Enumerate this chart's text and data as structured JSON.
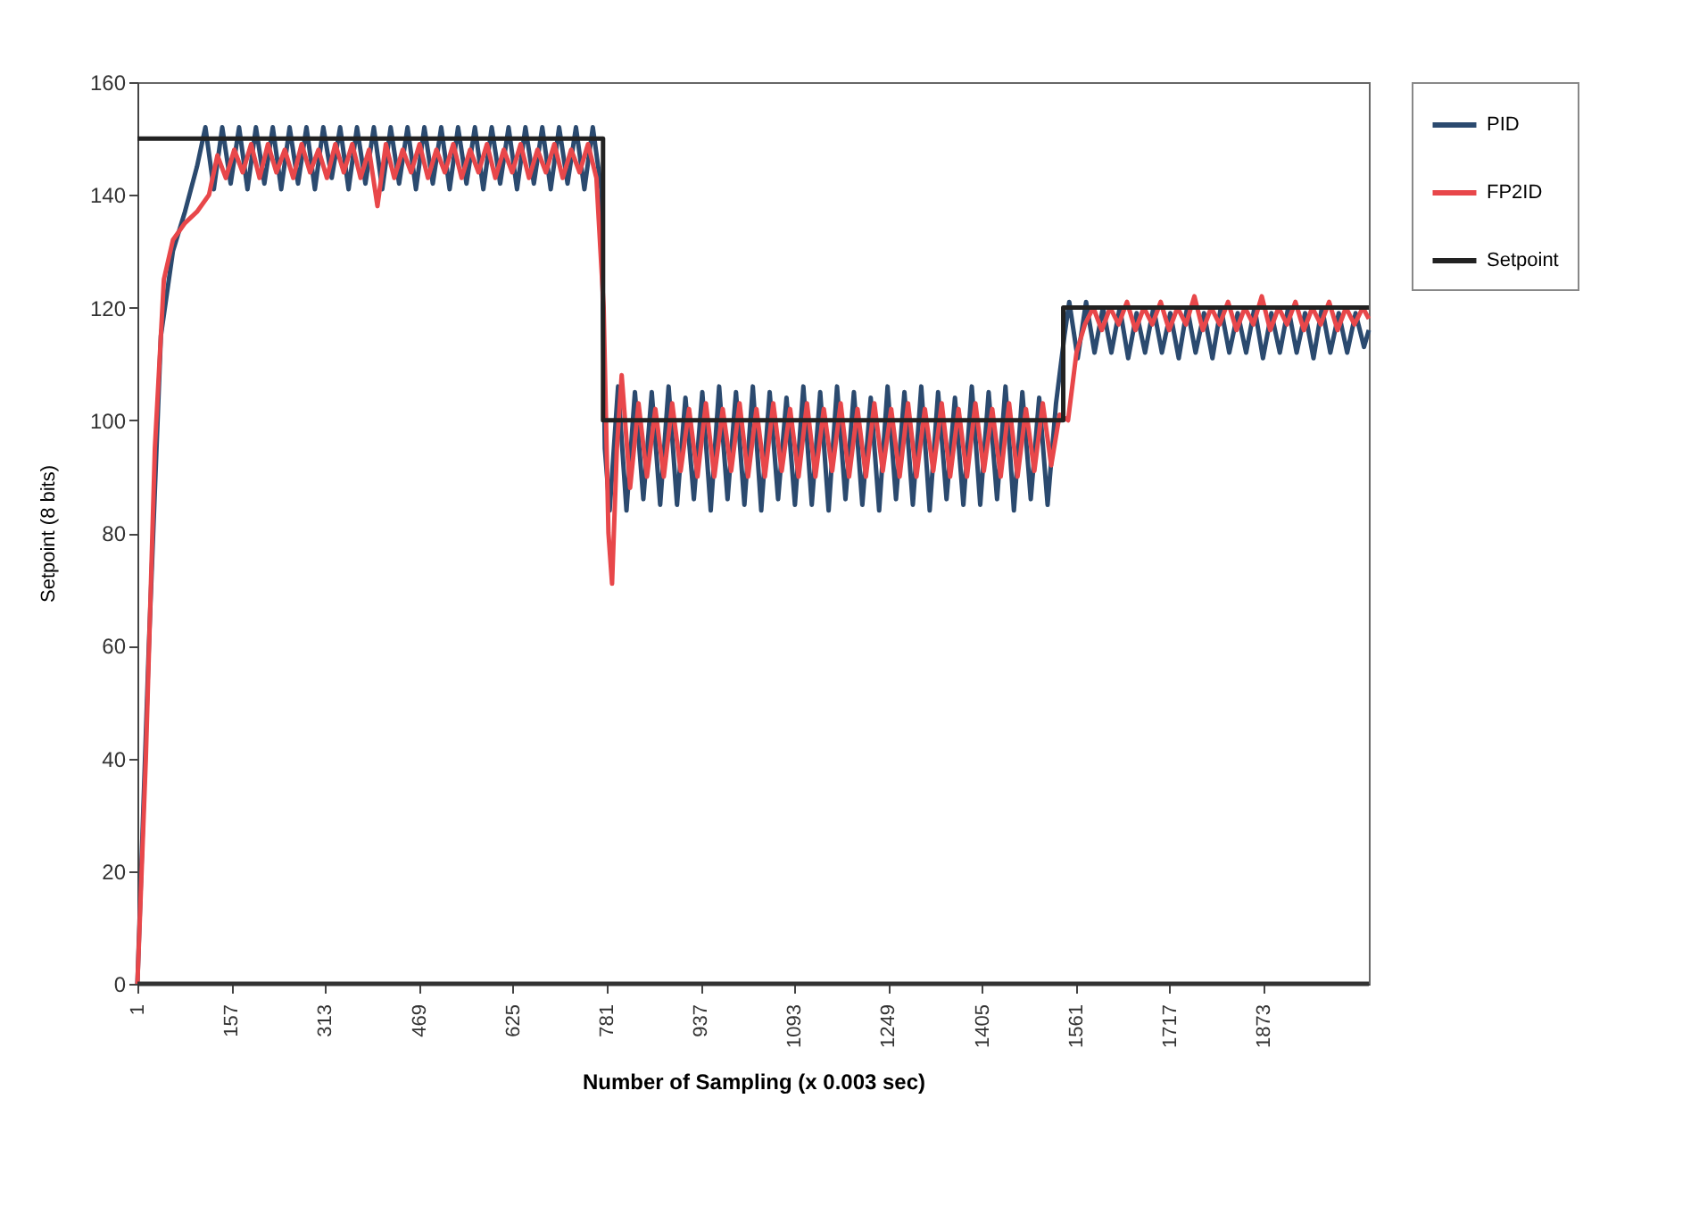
{
  "chart_data": {
    "type": "line",
    "xlabel": "Number of Sampling (x 0.003 sec)",
    "ylabel": "Setpoint (8 bits)",
    "xlim": [
      1,
      2048
    ],
    "xticks": [
      1,
      157,
      313,
      469,
      625,
      781,
      937,
      1093,
      1249,
      1405,
      1561,
      1717,
      1873
    ],
    "ylim": [
      0,
      160
    ],
    "yticks": [
      0,
      20,
      40,
      60,
      80,
      100,
      120,
      140,
      160
    ],
    "grid": false,
    "legend": "right",
    "marker": "none",
    "line_style": "solid",
    "series": [
      {
        "name": "PID",
        "color": "#2b4a6f",
        "x": [
          1,
          20,
          40,
          60,
          80,
          100,
          114,
          128,
          142,
          156,
          170,
          184,
          198,
          212,
          226,
          240,
          254,
          268,
          282,
          296,
          310,
          324,
          338,
          352,
          366,
          380,
          394,
          408,
          422,
          436,
          450,
          464,
          478,
          492,
          506,
          520,
          534,
          548,
          562,
          576,
          590,
          604,
          618,
          632,
          646,
          660,
          674,
          688,
          702,
          716,
          730,
          744,
          758,
          772,
          778,
          786,
          800,
          814,
          828,
          842,
          856,
          870,
          884,
          898,
          912,
          926,
          940,
          954,
          968,
          982,
          996,
          1010,
          1024,
          1038,
          1052,
          1066,
          1080,
          1094,
          1108,
          1122,
          1136,
          1150,
          1164,
          1178,
          1192,
          1206,
          1220,
          1234,
          1248,
          1262,
          1276,
          1290,
          1304,
          1318,
          1332,
          1346,
          1360,
          1374,
          1388,
          1402,
          1416,
          1430,
          1444,
          1458,
          1472,
          1486,
          1500,
          1514,
          1528,
          1542,
          1550,
          1564,
          1578,
          1592,
          1606,
          1620,
          1634,
          1648,
          1662,
          1676,
          1690,
          1704,
          1718,
          1732,
          1746,
          1760,
          1774,
          1788,
          1802,
          1816,
          1830,
          1844,
          1858,
          1872,
          1886,
          1900,
          1914,
          1928,
          1942,
          1956,
          1970,
          1984,
          1998,
          2012,
          2026,
          2040,
          2048
        ],
        "values": [
          0,
          60,
          115,
          130,
          137,
          145,
          152,
          141,
          152,
          142,
          152,
          141,
          152,
          142,
          152,
          141,
          152,
          142,
          152,
          141,
          152,
          143,
          152,
          141,
          152,
          142,
          152,
          141,
          152,
          142,
          152,
          141,
          152,
          142,
          152,
          141,
          152,
          142,
          152,
          141,
          152,
          142,
          152,
          141,
          152,
          142,
          152,
          141,
          152,
          142,
          152,
          141,
          152,
          141,
          95,
          84,
          106,
          84,
          105,
          86,
          105,
          85,
          106,
          85,
          104,
          86,
          105,
          84,
          106,
          86,
          105,
          85,
          106,
          84,
          105,
          86,
          104,
          85,
          106,
          85,
          105,
          84,
          106,
          86,
          105,
          85,
          104,
          84,
          106,
          86,
          105,
          85,
          106,
          84,
          105,
          86,
          104,
          85,
          106,
          85,
          105,
          86,
          106,
          84,
          105,
          86,
          104,
          85,
          103,
          115,
          121,
          111,
          121,
          112,
          120,
          112,
          120,
          111,
          119,
          112,
          120,
          112,
          119,
          111,
          120,
          112,
          119,
          111,
          120,
          112,
          119,
          112,
          120,
          111,
          119,
          112,
          120,
          112,
          119,
          111,
          120,
          112,
          119,
          112,
          119,
          113,
          116
        ]
      },
      {
        "name": "FP2ID",
        "color": "#e8474a",
        "x": [
          1,
          15,
          30,
          45,
          60,
          80,
          100,
          120,
          134,
          148,
          162,
          176,
          190,
          204,
          218,
          232,
          246,
          260,
          274,
          288,
          302,
          316,
          330,
          344,
          358,
          372,
          386,
          400,
          414,
          428,
          442,
          456,
          470,
          484,
          498,
          512,
          526,
          540,
          554,
          568,
          582,
          596,
          610,
          624,
          638,
          652,
          666,
          680,
          694,
          708,
          722,
          736,
          750,
          764,
          776,
          784,
          790,
          798,
          806,
          820,
          834,
          848,
          862,
          876,
          890,
          904,
          918,
          932,
          946,
          960,
          974,
          988,
          1002,
          1016,
          1030,
          1044,
          1058,
          1072,
          1086,
          1100,
          1114,
          1128,
          1142,
          1156,
          1170,
          1184,
          1198,
          1212,
          1226,
          1240,
          1254,
          1268,
          1282,
          1296,
          1310,
          1324,
          1338,
          1352,
          1366,
          1380,
          1394,
          1408,
          1422,
          1436,
          1450,
          1464,
          1478,
          1492,
          1506,
          1520,
          1534,
          1548,
          1562,
          1576,
          1590,
          1604,
          1618,
          1632,
          1646,
          1660,
          1674,
          1688,
          1702,
          1716,
          1730,
          1744,
          1758,
          1772,
          1786,
          1800,
          1814,
          1828,
          1842,
          1856,
          1870,
          1884,
          1898,
          1912,
          1926,
          1940,
          1954,
          1968,
          1982,
          1996,
          2010,
          2024,
          2038,
          2048
        ],
        "values": [
          0,
          40,
          95,
          125,
          132,
          135,
          137,
          140,
          147,
          143,
          148,
          144,
          149,
          143,
          149,
          144,
          148,
          143,
          149,
          144,
          148,
          143,
          149,
          144,
          149,
          143,
          148,
          138,
          149,
          143,
          148,
          144,
          149,
          143,
          148,
          144,
          149,
          143,
          148,
          144,
          149,
          143,
          148,
          144,
          149,
          143,
          148,
          144,
          149,
          143,
          148,
          144,
          149,
          143,
          120,
          80,
          71,
          95,
          108,
          88,
          103,
          90,
          102,
          90,
          103,
          91,
          102,
          90,
          103,
          90,
          102,
          91,
          103,
          90,
          102,
          90,
          103,
          91,
          102,
          90,
          103,
          90,
          102,
          91,
          103,
          90,
          102,
          90,
          103,
          91,
          102,
          90,
          103,
          90,
          102,
          91,
          103,
          90,
          102,
          90,
          103,
          91,
          102,
          90,
          103,
          90,
          102,
          91,
          103,
          92,
          101,
          100,
          112,
          117,
          120,
          116,
          120,
          117,
          121,
          116,
          120,
          117,
          121,
          116,
          120,
          117,
          122,
          116,
          120,
          117,
          121,
          116,
          120,
          117,
          122,
          116,
          120,
          117,
          121,
          116,
          120,
          117,
          121,
          116,
          120,
          117,
          120,
          118
        ]
      },
      {
        "name": "Setpoint",
        "color": "#222222",
        "x": [
          1,
          775,
          775,
          1540,
          1540,
          2048
        ],
        "values": [
          150,
          150,
          100,
          100,
          120,
          120
        ]
      },
      {
        "color": "#333333",
        "x": [
          1,
          2048
        ],
        "values": [
          0,
          0
        ]
      }
    ]
  }
}
